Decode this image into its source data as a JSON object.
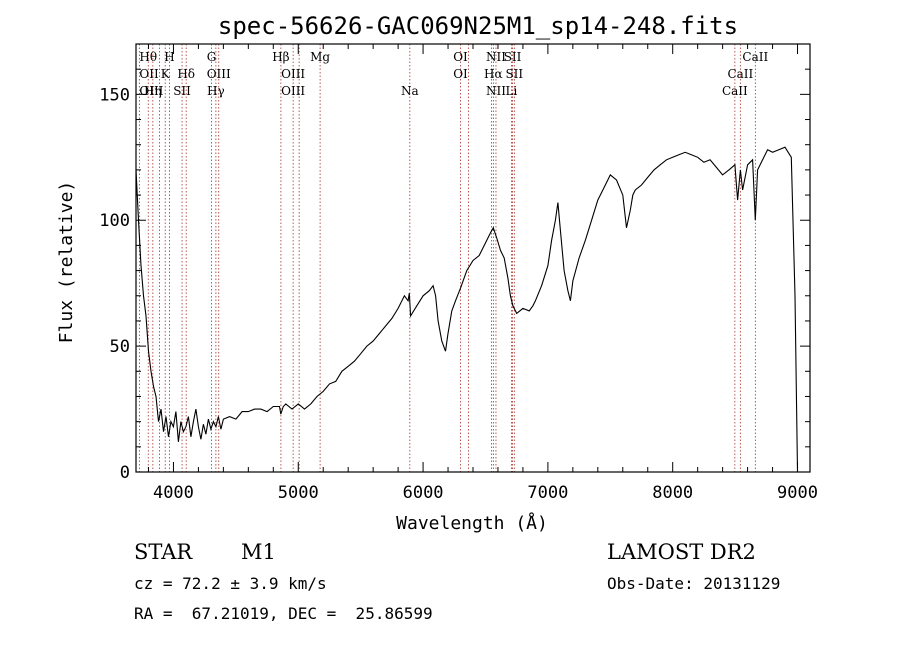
{
  "chart_data": {
    "type": "line",
    "title": "spec-56626-GAC069N25M1_sp14-248.fits",
    "xlabel": "Wavelength (Å)",
    "ylabel": "Flux (relative)",
    "xlim": [
      3700,
      9100
    ],
    "ylim": [
      0,
      170
    ],
    "xticks": [
      4000,
      5000,
      6000,
      7000,
      8000,
      9000
    ],
    "yticks": [
      0,
      50,
      100,
      150
    ],
    "grid": false,
    "series": [
      {
        "color": "#000000",
        "x": [
          3700,
          3720,
          3740,
          3760,
          3780,
          3800,
          3820,
          3840,
          3860,
          3880,
          3900,
          3920,
          3940,
          3960,
          3980,
          4000,
          4020,
          4040,
          4060,
          4080,
          4100,
          4120,
          4140,
          4160,
          4180,
          4200,
          4220,
          4240,
          4260,
          4280,
          4300,
          4320,
          4340,
          4360,
          4380,
          4400,
          4450,
          4500,
          4550,
          4600,
          4650,
          4700,
          4750,
          4800,
          4850,
          4860,
          4880,
          4900,
          4950,
          5000,
          5050,
          5100,
          5150,
          5200,
          5250,
          5300,
          5350,
          5400,
          5450,
          5500,
          5550,
          5600,
          5650,
          5700,
          5750,
          5800,
          5850,
          5880,
          5890,
          5900,
          5950,
          6000,
          6050,
          6080,
          6100,
          6120,
          6150,
          6180,
          6200,
          6230,
          6260,
          6300,
          6350,
          6400,
          6450,
          6500,
          6540,
          6563,
          6590,
          6620,
          6650,
          6680,
          6700,
          6720,
          6750,
          6800,
          6850,
          6880,
          6900,
          6950,
          7000,
          7030,
          7060,
          7080,
          7100,
          7130,
          7160,
          7180,
          7200,
          7250,
          7300,
          7350,
          7400,
          7450,
          7500,
          7550,
          7600,
          7630,
          7660,
          7680,
          7700,
          7750,
          7800,
          7850,
          7900,
          7950,
          8000,
          8050,
          8100,
          8150,
          8200,
          8250,
          8300,
          8350,
          8400,
          8450,
          8498,
          8520,
          8542,
          8560,
          8600,
          8640,
          8662,
          8680,
          8720,
          8760,
          8800,
          8850,
          8900,
          8950,
          8980,
          9000
        ],
        "y": [
          120,
          100,
          82,
          70,
          62,
          48,
          40,
          34,
          30,
          20,
          25,
          16,
          22,
          14,
          20,
          18,
          24,
          12,
          20,
          16,
          18,
          22,
          14,
          20,
          25,
          18,
          13,
          19,
          15,
          21,
          17,
          20,
          18,
          22,
          17,
          21,
          22,
          21,
          24,
          24,
          25,
          25,
          24,
          26,
          26,
          23,
          26,
          27,
          25,
          27,
          25,
          27,
          30,
          32,
          35,
          36,
          40,
          42,
          44,
          47,
          50,
          52,
          55,
          58,
          61,
          65,
          70,
          68,
          71,
          62,
          66,
          70,
          72,
          74,
          70,
          60,
          52,
          48,
          55,
          64,
          68,
          73,
          80,
          84,
          86,
          91,
          95,
          97,
          93,
          88,
          85,
          77,
          70,
          66,
          63,
          65,
          64,
          66,
          68,
          74,
          82,
          92,
          100,
          107,
          96,
          80,
          72,
          68,
          76,
          85,
          92,
          100,
          108,
          113,
          118,
          116,
          110,
          97,
          104,
          110,
          112,
          114,
          117,
          120,
          122,
          124,
          125,
          126,
          127,
          126,
          125,
          123,
          124,
          121,
          118,
          120,
          122,
          108,
          120,
          112,
          122,
          124,
          100,
          120,
          124,
          128,
          127,
          128,
          129,
          125,
          70,
          0
        ]
      }
    ],
    "line_markers": [
      {
        "label": "Hθ",
        "wavelength": 3798,
        "row": 0
      },
      {
        "label": "OII",
        "wavelength": 3727,
        "row": 1
      },
      {
        "label": "OIII",
        "wavelength": 3727,
        "row": 2
      },
      {
        "label": "Hη",
        "wavelength": 3835,
        "row": 2
      },
      {
        "label": "H",
        "wavelength": 3968,
        "row": 0
      },
      {
        "label": "K",
        "wavelength": 3934,
        "row": 1
      },
      {
        "label": "Hδ",
        "wavelength": 4102,
        "row": 1
      },
      {
        "label": "SII",
        "wavelength": 4069,
        "row": 2
      },
      {
        "label": "G",
        "wavelength": 4305,
        "row": 0
      },
      {
        "label": "OIII",
        "wavelength": 4363,
        "row": 1
      },
      {
        "label": "Hγ",
        "wavelength": 4340,
        "row": 2
      },
      {
        "label": "Hβ",
        "wavelength": 4861,
        "row": 0
      },
      {
        "label": "OIII",
        "wavelength": 4959,
        "row": 1
      },
      {
        "label": "OIII",
        "wavelength": 4959,
        "row": 2
      },
      {
        "label": "Mg",
        "wavelength": 5175,
        "row": 0
      },
      {
        "label": "Na",
        "wavelength": 5894,
        "row": 2
      },
      {
        "label": "OI",
        "wavelength": 6300,
        "row": 0
      },
      {
        "label": "OI",
        "wavelength": 6300,
        "row": 1
      },
      {
        "label": "NII",
        "wavelength": 6584,
        "row": 0
      },
      {
        "label": "Hα",
        "wavelength": 6563,
        "row": 1
      },
      {
        "label": "NII",
        "wavelength": 6584,
        "row": 2
      },
      {
        "label": "SII",
        "wavelength": 6717,
        "row": 0
      },
      {
        "label": "SII",
        "wavelength": 6731,
        "row": 1
      },
      {
        "label": "Li",
        "wavelength": 6708,
        "row": 2
      },
      {
        "label": "CaII",
        "wavelength": 8662,
        "row": 0
      },
      {
        "label": "CaII",
        "wavelength": 8542,
        "row": 1
      },
      {
        "label": "CaII",
        "wavelength": 8498,
        "row": 2
      }
    ],
    "marker_lines": [
      3727,
      3798,
      3835,
      3889,
      3934,
      3968,
      4069,
      4102,
      4305,
      4340,
      4363,
      4861,
      4959,
      5007,
      5175,
      5894,
      6300,
      6363,
      6548,
      6563,
      6584,
      6708,
      6717,
      6731,
      8498,
      8542,
      8662
    ]
  },
  "info": {
    "object_class": "STAR",
    "subclass": "M1",
    "survey": "LAMOST DR2",
    "redshift": "cz = 72.2 ± 3.9 km/s",
    "obs_date": "Obs-Date: 20131129",
    "coords": "RA =  67.21019, DEC =  25.86599"
  }
}
